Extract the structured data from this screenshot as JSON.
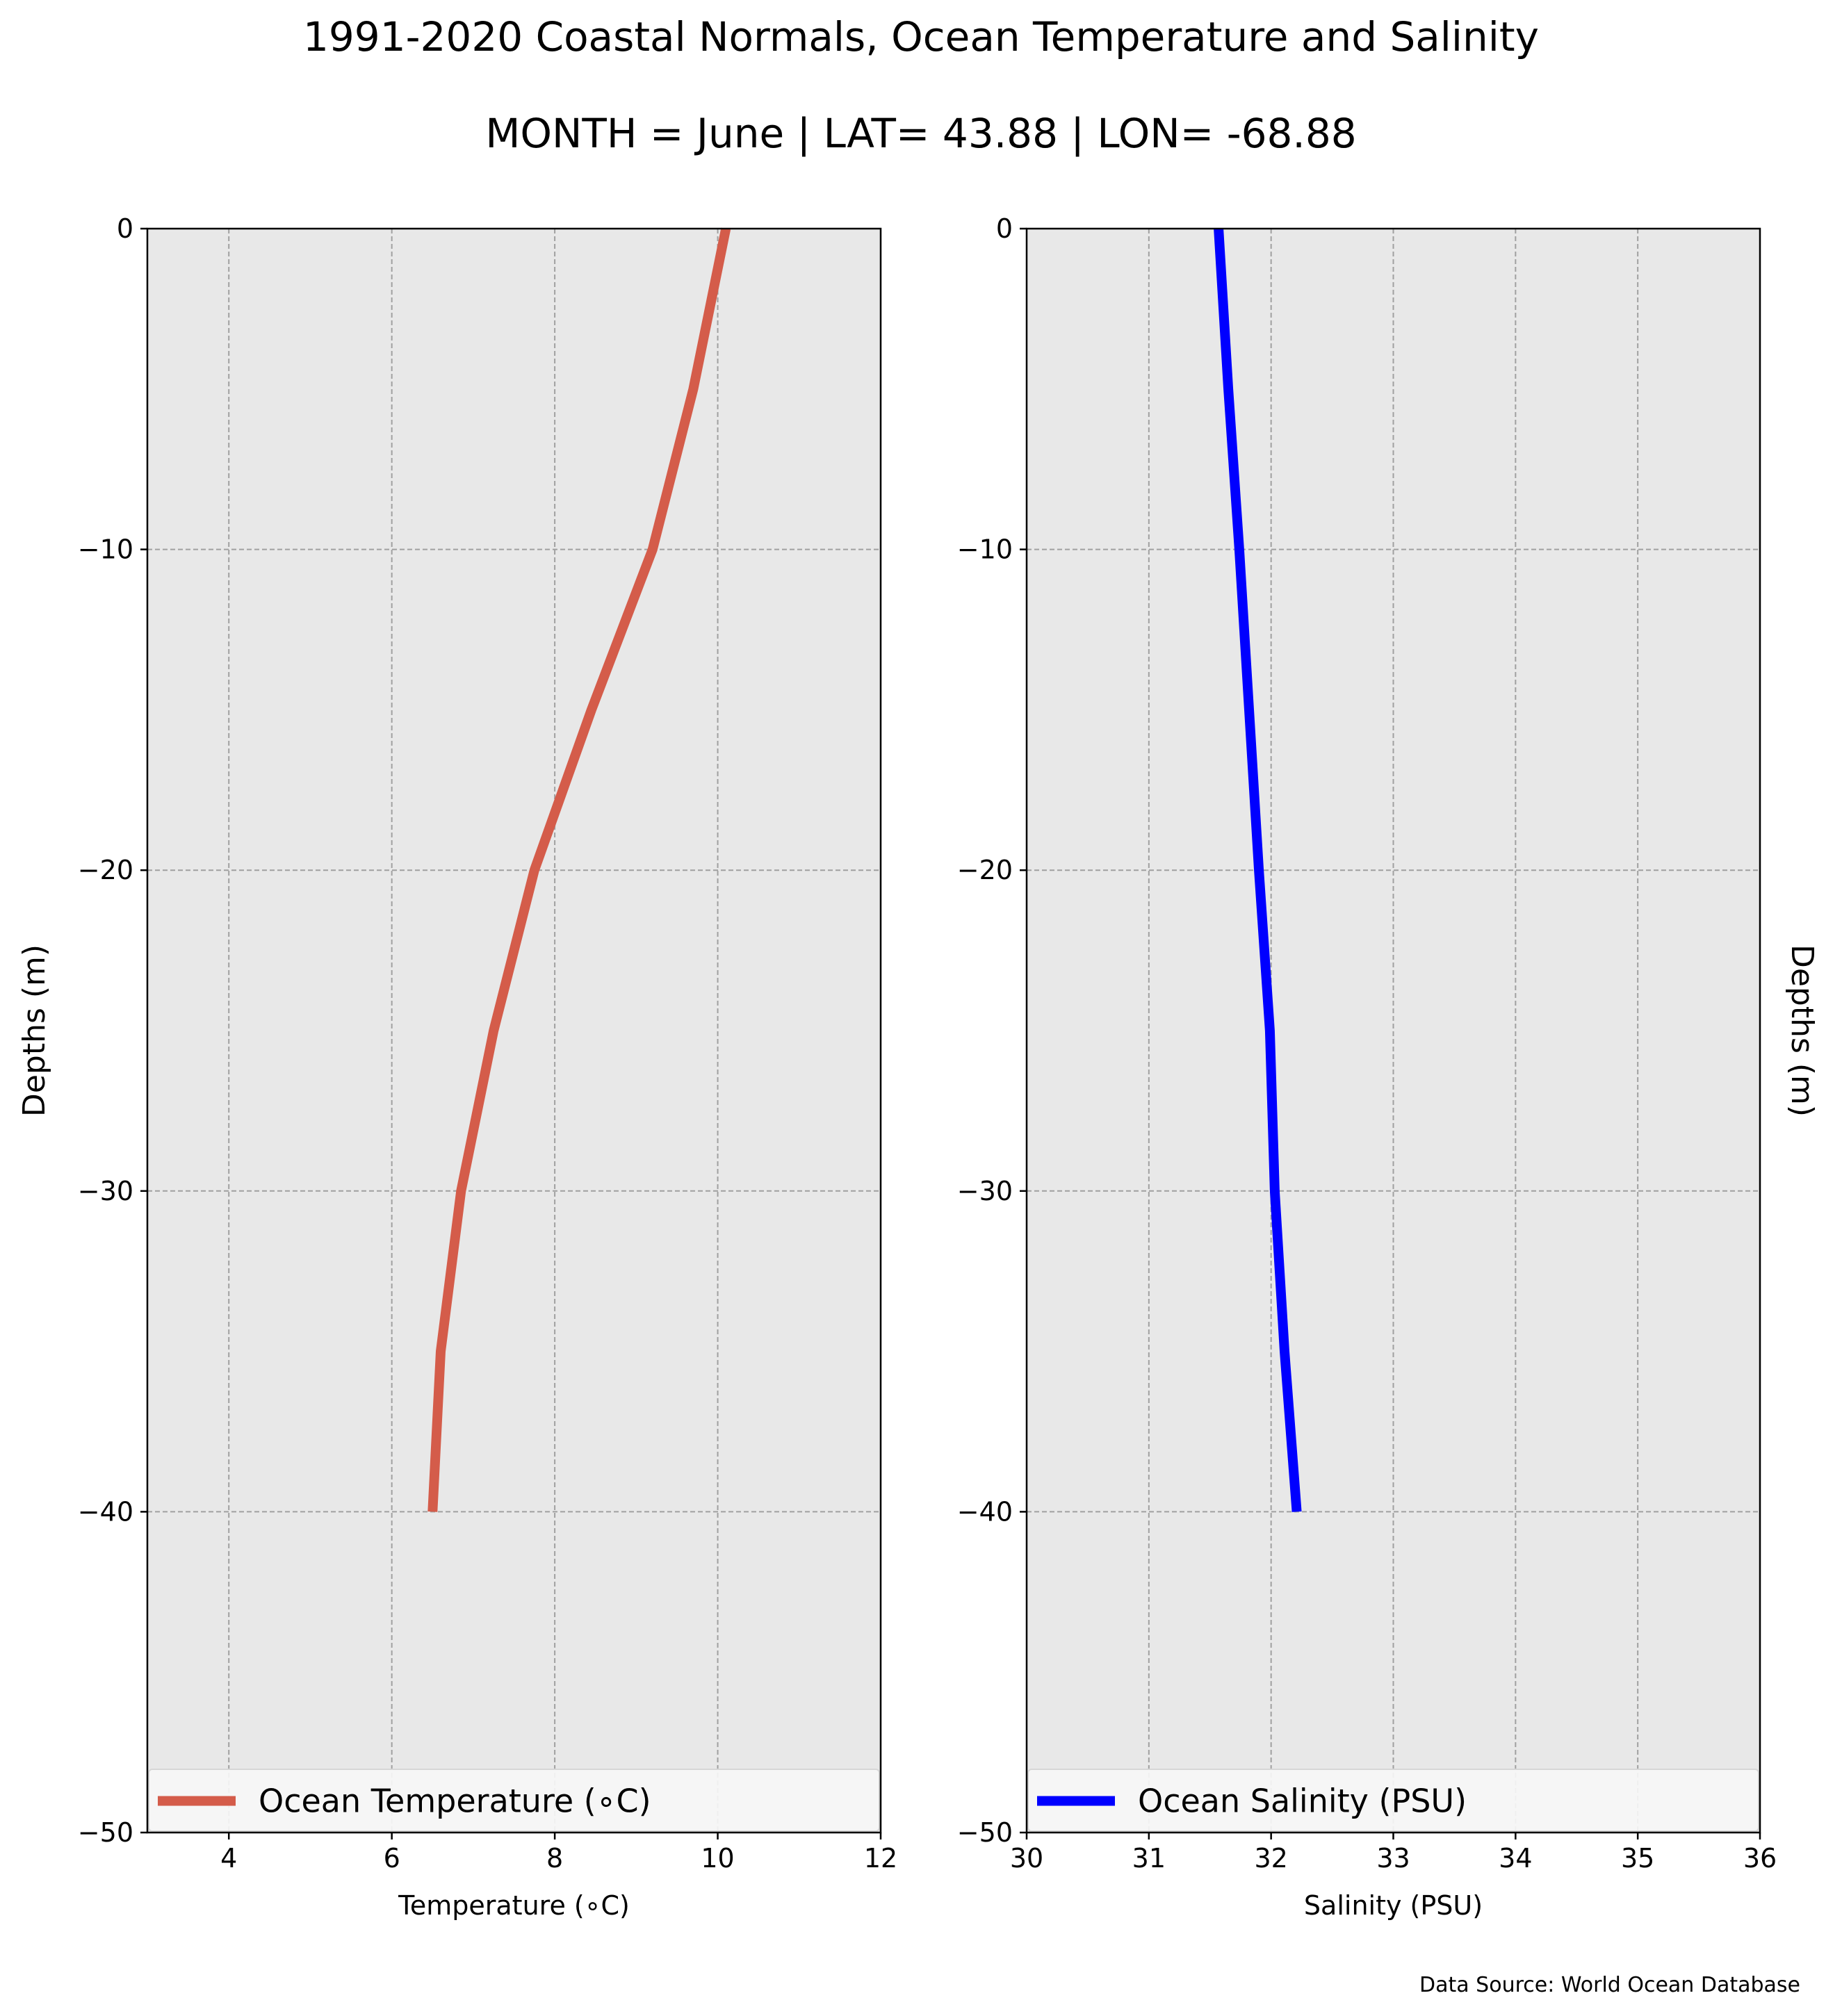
{
  "figure": {
    "title": "1991-2020 Coastal Normals, Ocean Temperature and Salinity",
    "subtitle": "MONTH = June | LAT= 43.88 | LON= -68.88",
    "source_note": "Data Source: World Ocean Database",
    "background": "#ffffff",
    "panel_background": "#e8e8e8",
    "grid_color": "#a0a0a0"
  },
  "chart_data": [
    {
      "type": "line",
      "xlabel": "Temperature (∘C)",
      "ylabel": "Depths (m)",
      "xlim": [
        3,
        12
      ],
      "ylim": [
        -50,
        0
      ],
      "xticks": [
        4,
        6,
        8,
        10,
        12
      ],
      "yticks": [
        0,
        -10,
        -20,
        -30,
        -40,
        -50
      ],
      "ytick_labels": [
        "0",
        "−10",
        "−20",
        "−30",
        "−40",
        "−50"
      ],
      "ylabel_side": "left",
      "grid": true,
      "legend_position": "bottom",
      "series": [
        {
          "name": "Ocean Temperature (∘C)",
          "color": "#d45c4a",
          "x": [
            10.1,
            9.7,
            9.2,
            8.45,
            7.75,
            7.25,
            6.85,
            6.6,
            6.5
          ],
          "y": [
            0,
            -5,
            -10,
            -15,
            -20,
            -25,
            -30,
            -35,
            -40
          ]
        }
      ]
    },
    {
      "type": "line",
      "xlabel": "Salinity (PSU)",
      "ylabel": "Depths (m)",
      "xlim": [
        30,
        36
      ],
      "ylim": [
        -50,
        0
      ],
      "xticks": [
        30,
        31,
        32,
        33,
        34,
        35,
        36
      ],
      "yticks": [
        0,
        -10,
        -20,
        -30,
        -40,
        -50
      ],
      "ytick_labels": [
        "0",
        "−10",
        "−20",
        "−30",
        "−40",
        "−50"
      ],
      "ylabel_side": "right",
      "grid": true,
      "legend_position": "bottom",
      "series": [
        {
          "name": "Ocean Salinity (PSU)",
          "color": "#0000ff",
          "x": [
            31.57,
            31.65,
            31.74,
            31.82,
            31.9,
            31.99,
            32.03,
            32.11,
            32.21
          ],
          "y": [
            0,
            -5,
            -10,
            -15,
            -20,
            -25,
            -30,
            -35,
            -40
          ]
        }
      ]
    }
  ]
}
